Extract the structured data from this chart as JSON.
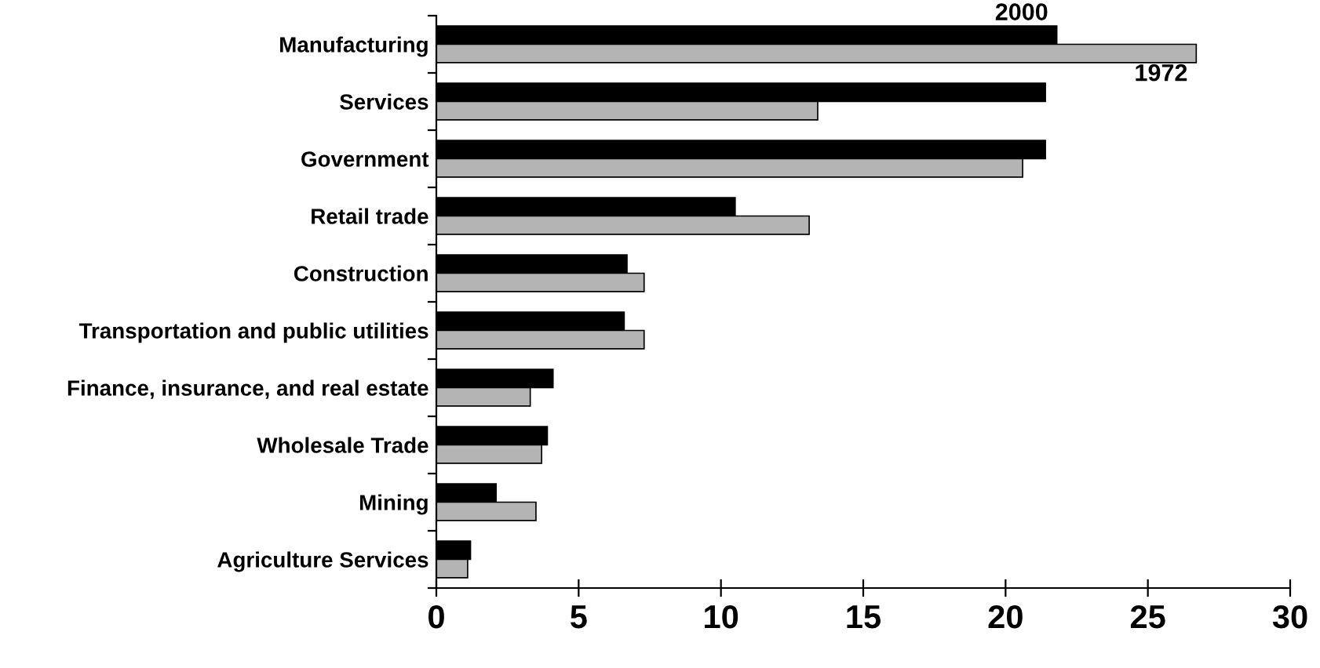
{
  "chart_data": {
    "type": "bar",
    "orientation": "horizontal",
    "categories": [
      "Manufacturing",
      "Services",
      "Government",
      "Retail trade",
      "Construction",
      "Transportation and public utilities",
      "Finance, insurance, and real estate",
      "Wholesale Trade",
      "Mining",
      "Agriculture Services"
    ],
    "series": [
      {
        "name": "2000",
        "color": "#000000",
        "values": [
          21.8,
          21.4,
          21.4,
          10.5,
          6.7,
          6.6,
          4.1,
          3.9,
          2.1,
          1.2
        ]
      },
      {
        "name": "1972",
        "color": "#b4b4b4",
        "values": [
          26.7,
          13.4,
          20.6,
          13.1,
          7.3,
          7.3,
          3.3,
          3.7,
          3.5,
          1.1
        ]
      }
    ],
    "xlim": [
      0,
      30
    ],
    "xticks": [
      0,
      5,
      10,
      15,
      20,
      25,
      30
    ],
    "grid": false,
    "legend": false
  }
}
